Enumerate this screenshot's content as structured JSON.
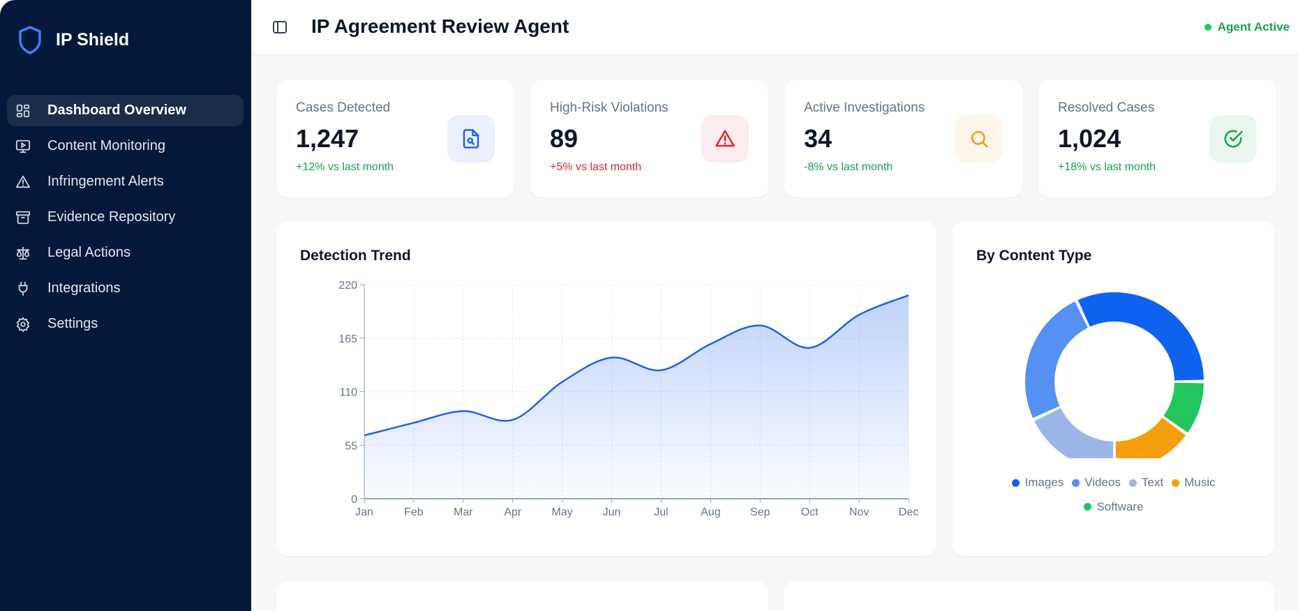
{
  "app": {
    "name": "IP Shield"
  },
  "sidebar": {
    "items": [
      {
        "label": "Dashboard Overview",
        "icon": "dashboard-icon",
        "active": true
      },
      {
        "label": "Content Monitoring",
        "icon": "monitor-icon"
      },
      {
        "label": "Infringement Alerts",
        "icon": "alert-triangle-icon"
      },
      {
        "label": "Evidence Repository",
        "icon": "archive-icon"
      },
      {
        "label": "Legal Actions",
        "icon": "scale-icon"
      },
      {
        "label": "Integrations",
        "icon": "plug-icon"
      },
      {
        "label": "Settings",
        "icon": "gear-icon"
      }
    ]
  },
  "header": {
    "title": "IP Agreement Review Agent",
    "status": "Agent Active"
  },
  "stats": [
    {
      "label": "Cases Detected",
      "value": "1,247",
      "change": "+12% vs last month",
      "change_color": "#16a34a",
      "icon": "file-search-icon",
      "icon_color": "#2563eb",
      "icon_bg": "#eaf0fe"
    },
    {
      "label": "High-Risk Violations",
      "value": "89",
      "change": "+5% vs last month",
      "change_color": "#dc2626",
      "icon": "alert-triangle-icon",
      "icon_color": "#dc2626",
      "icon_bg": "#fdeced"
    },
    {
      "label": "Active Investigations",
      "value": "34",
      "change": "-8% vs last month",
      "change_color": "#16a34a",
      "icon": "search-icon",
      "icon_color": "#f59e0b",
      "icon_bg": "#fef5eb"
    },
    {
      "label": "Resolved Cases",
      "value": "1,024",
      "change": "+18% vs last month",
      "change_color": "#16a34a",
      "icon": "check-circle-icon",
      "icon_color": "#16a34a",
      "icon_bg": "#eaf7ee"
    }
  ],
  "chart_data": [
    {
      "type": "area",
      "title": "Detection Trend",
      "categories": [
        "Jan",
        "Feb",
        "Mar",
        "Apr",
        "May",
        "Jun",
        "Jul",
        "Aug",
        "Sep",
        "Oct",
        "Nov",
        "Dec"
      ],
      "values": [
        65,
        78,
        90,
        81,
        120,
        145,
        132,
        159,
        178,
        155,
        189,
        209
      ],
      "ylim": [
        0,
        220
      ],
      "yticks": [
        "0",
        "55",
        "110",
        "165",
        "220"
      ],
      "grid": true,
      "color": "#1d63ed"
    },
    {
      "type": "pie",
      "title": "By Content Type",
      "categories": [
        "Images",
        "Videos",
        "Text",
        "Music",
        "Software"
      ],
      "values": [
        32,
        25,
        18,
        15,
        10
      ],
      "colors": [
        "#0f62f0",
        "#5590f3",
        "#9cb6e8",
        "#f59e0b",
        "#22c55e"
      ],
      "legend": "bottom"
    }
  ]
}
